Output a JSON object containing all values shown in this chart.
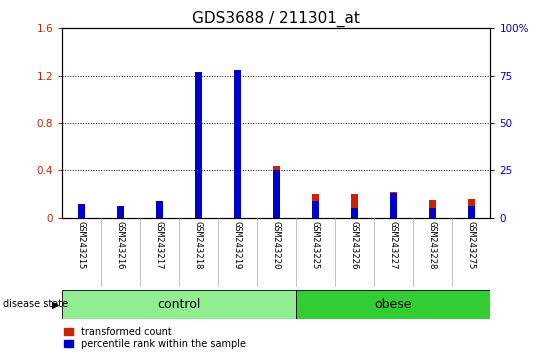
{
  "title": "GDS3688 / 211301_at",
  "samples": [
    "GSM243215",
    "GSM243216",
    "GSM243217",
    "GSM243218",
    "GSM243219",
    "GSM243220",
    "GSM243225",
    "GSM243226",
    "GSM243227",
    "GSM243228",
    "GSM243275"
  ],
  "transformed_count": [
    0.08,
    0.09,
    0.1,
    1.17,
    1.24,
    0.44,
    0.2,
    0.2,
    0.22,
    0.15,
    0.16
  ],
  "percentile_rank_pct": [
    7,
    6,
    9,
    77,
    78,
    25,
    9,
    5,
    13,
    5,
    6
  ],
  "groups": [
    {
      "label": "control",
      "start": 0,
      "end": 5,
      "color": "#90EE90"
    },
    {
      "label": "obese",
      "start": 6,
      "end": 10,
      "color": "#32CD32"
    }
  ],
  "left_ylim": [
    0,
    1.6
  ],
  "right_ylim": [
    0,
    100
  ],
  "left_yticks": [
    0,
    0.4,
    0.8,
    1.2,
    1.6
  ],
  "left_ytick_labels": [
    "0",
    "0.4",
    "0.8",
    "1.2",
    "1.6"
  ],
  "right_yticks": [
    0,
    25,
    50,
    75,
    100
  ],
  "right_ytick_labels": [
    "0",
    "25",
    "50",
    "75",
    "100%"
  ],
  "bar_color_red": "#CC2200",
  "bar_color_blue": "#0000CC",
  "bar_width": 0.18,
  "bg_plot": "#FFFFFF",
  "bg_label_row": "#C8C8C8",
  "title_fontsize": 11,
  "tick_fontsize": 7.5,
  "legend_label_red": "transformed count",
  "legend_label_blue": "percentile rank within the sample",
  "disease_state_label": "disease state",
  "group_label_fontsize": 9
}
